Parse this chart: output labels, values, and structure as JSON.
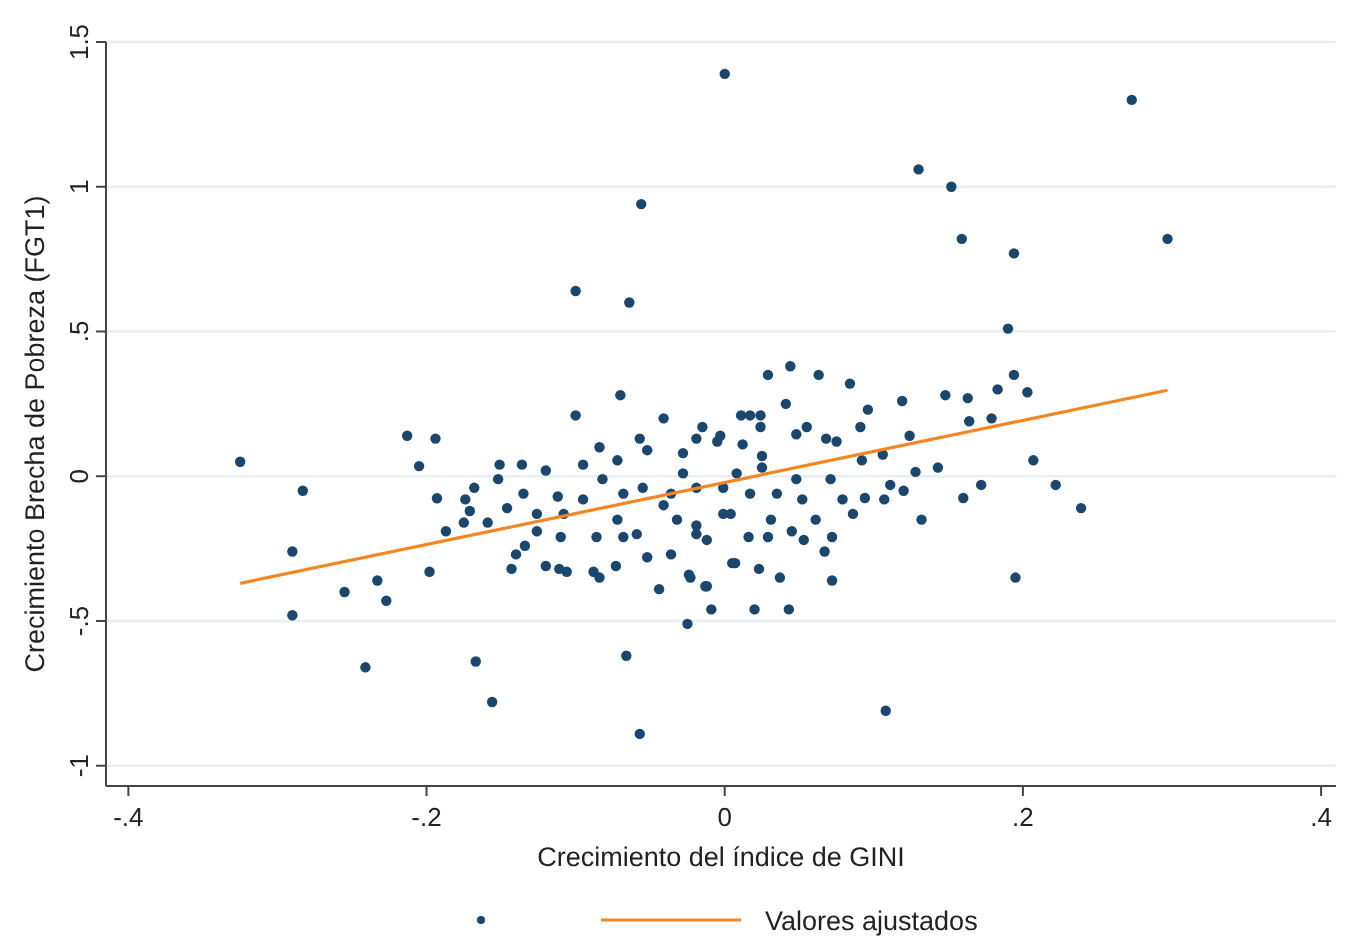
{
  "chart_data": {
    "type": "scatter",
    "xlabel": "Crecimiento del índice de GINI",
    "ylabel": "Crecimiento Brecha de Pobreza (FGT1)",
    "xlim": [
      -0.415,
      0.41
    ],
    "ylim": [
      -1.07,
      1.5
    ],
    "xticks": [
      {
        "value": -0.4,
        "label": "-.4"
      },
      {
        "value": -0.2,
        "label": "-.2"
      },
      0,
      {
        "value": 0.2,
        "label": ".2"
      },
      {
        "value": 0.4,
        "label": ".4"
      }
    ],
    "yticks": [
      -1,
      {
        "value": -0.5,
        "label": "-.5"
      },
      0,
      {
        "value": 0.5,
        "label": ".5"
      },
      1,
      1.5
    ],
    "grid": "y",
    "legend": "bottom",
    "marker": "circle",
    "series": [
      {
        "color": "#1a476f",
        "x": [
          0,
          0.273,
          -0.056,
          -0.1,
          -0.064,
          -0.07,
          -0.1,
          -0.041,
          -0.325,
          -0.213,
          -0.194,
          -0.205,
          0.13,
          0.152,
          0.159,
          0.194,
          0.297,
          0.19,
          0.194,
          0.029,
          0.044,
          0.063,
          0.084,
          0.148,
          0.163,
          0.183,
          0.203,
          0.207,
          0.179,
          0.164,
          0.119,
          0.124,
          0.096,
          -0.29,
          -0.29,
          -0.283,
          -0.255,
          -0.233,
          -0.227,
          -0.241,
          -0.167,
          -0.156,
          -0.198,
          -0.193,
          -0.187,
          -0.175,
          -0.171,
          -0.174,
          -0.168,
          -0.152,
          -0.151,
          -0.136,
          -0.146,
          -0.159,
          -0.143,
          -0.14,
          -0.134,
          -0.126,
          -0.12,
          -0.112,
          -0.12,
          -0.111,
          -0.106,
          -0.11,
          -0.084,
          -0.095,
          -0.088,
          -0.084,
          -0.073,
          -0.066,
          -0.057,
          -0.044,
          -0.025,
          -0.013,
          -0.009,
          -0.057,
          -0.052,
          -0.015,
          -0.003,
          -0.086,
          -0.068,
          -0.052,
          -0.036,
          -0.024,
          0.005,
          -0.068,
          -0.095,
          -0.082,
          -0.055,
          -0.041,
          -0.028,
          -0.019,
          -0.001,
          -0.032,
          -0.108,
          -0.135,
          -0.126,
          -0.072,
          -0.059,
          0.108,
          0.195,
          0.239,
          0.222,
          0.172,
          0.16,
          0.143,
          0.132,
          0.128,
          0.12,
          0.107,
          0.111,
          0.094,
          0.086,
          0.072,
          0.043,
          0.02,
          -0.012,
          0.037,
          0.023,
          0.007,
          -0.023,
          0.067,
          0.072,
          0.053,
          0.045,
          0.029,
          0.016,
          0.061,
          0.031,
          0.004,
          -0.019,
          -0.012,
          0.052,
          0.035,
          0.017,
          0.079,
          0.071,
          0.048,
          0.025,
          0.008,
          -0.001,
          -0.019,
          -0.036,
          -0.072,
          0.092,
          0.106,
          0.011,
          0.024,
          0.041,
          0.091,
          0.055,
          0.048,
          0.068,
          0.075,
          0.025,
          -0.028,
          -0.005,
          -0.019,
          0.017,
          0.024,
          0.012
        ],
        "values": [
          1.39,
          1.3,
          0.94,
          0.64,
          0.6,
          0.28,
          0.21,
          0.2,
          0.05,
          0.14,
          0.13,
          0.035,
          1.06,
          1.0,
          0.82,
          0.77,
          0.82,
          0.51,
          0.35,
          0.35,
          0.38,
          0.35,
          0.32,
          0.28,
          0.27,
          0.3,
          0.29,
          0.055,
          0.2,
          0.19,
          0.26,
          0.14,
          0.23,
          -0.48,
          -0.26,
          -0.05,
          -0.4,
          -0.36,
          -0.43,
          -0.66,
          -0.64,
          -0.78,
          -0.33,
          -0.076,
          -0.19,
          -0.16,
          -0.12,
          -0.08,
          -0.04,
          -0.01,
          0.04,
          0.04,
          -0.11,
          -0.16,
          -0.32,
          -0.27,
          -0.24,
          -0.19,
          0.02,
          -0.07,
          -0.31,
          -0.32,
          -0.33,
          -0.21,
          0.1,
          0.04,
          -0.33,
          -0.35,
          -0.31,
          -0.62,
          -0.89,
          -0.39,
          -0.51,
          -0.38,
          -0.46,
          0.13,
          0.09,
          0.17,
          0.14,
          -0.21,
          -0.21,
          -0.28,
          -0.27,
          -0.34,
          -0.3,
          -0.06,
          -0.08,
          -0.01,
          -0.04,
          -0.1,
          0.01,
          -0.17,
          -0.13,
          -0.15,
          -0.13,
          -0.06,
          -0.13,
          -0.15,
          -0.2,
          -0.81,
          -0.35,
          -0.11,
          -0.03,
          -0.03,
          -0.075,
          0.03,
          -0.15,
          0.015,
          -0.05,
          -0.08,
          -0.03,
          -0.075,
          -0.13,
          -0.36,
          -0.46,
          -0.46,
          -0.38,
          -0.35,
          -0.32,
          -0.3,
          -0.35,
          -0.26,
          -0.21,
          -0.22,
          -0.19,
          -0.21,
          -0.21,
          -0.15,
          -0.15,
          -0.13,
          -0.2,
          -0.22,
          -0.08,
          -0.06,
          -0.06,
          -0.08,
          -0.01,
          -0.01,
          0.03,
          0.01,
          -0.04,
          -0.04,
          -0.06,
          0.055,
          0.055,
          0.075,
          0.21,
          0.17,
          0.25,
          0.17,
          0.17,
          0.145,
          0.13,
          0.12,
          0.07,
          0.08,
          0.12,
          0.13,
          0.21,
          0.21,
          0.11
        ]
      },
      {
        "type": "line",
        "name": "Valores ajustados",
        "color": "#f5861f",
        "marker": "none",
        "x": [
          -0.325,
          0.297
        ],
        "values": [
          -0.37,
          0.297
        ]
      }
    ]
  }
}
